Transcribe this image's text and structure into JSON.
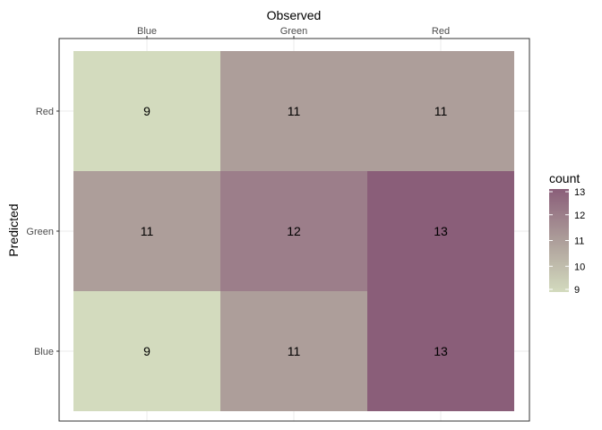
{
  "chart_data": {
    "type": "heatmap",
    "title": "",
    "xlabel": "Observed",
    "ylabel": "Predicted",
    "x_categories": [
      "Blue",
      "Green",
      "Red"
    ],
    "y_categories": [
      "Red",
      "Green",
      "Blue"
    ],
    "values": [
      [
        9,
        11,
        11
      ],
      [
        11,
        12,
        13
      ],
      [
        9,
        11,
        13
      ]
    ],
    "x_axis_position": "top",
    "grid": true,
    "legend": {
      "title": "count",
      "min": 9,
      "max": 13,
      "ticks": [
        13,
        12,
        11,
        10,
        9
      ],
      "low_color": "#d3dbbe",
      "mid_color": "#ad9e9a",
      "high_color": "#8a5e79",
      "placement": "right"
    }
  }
}
